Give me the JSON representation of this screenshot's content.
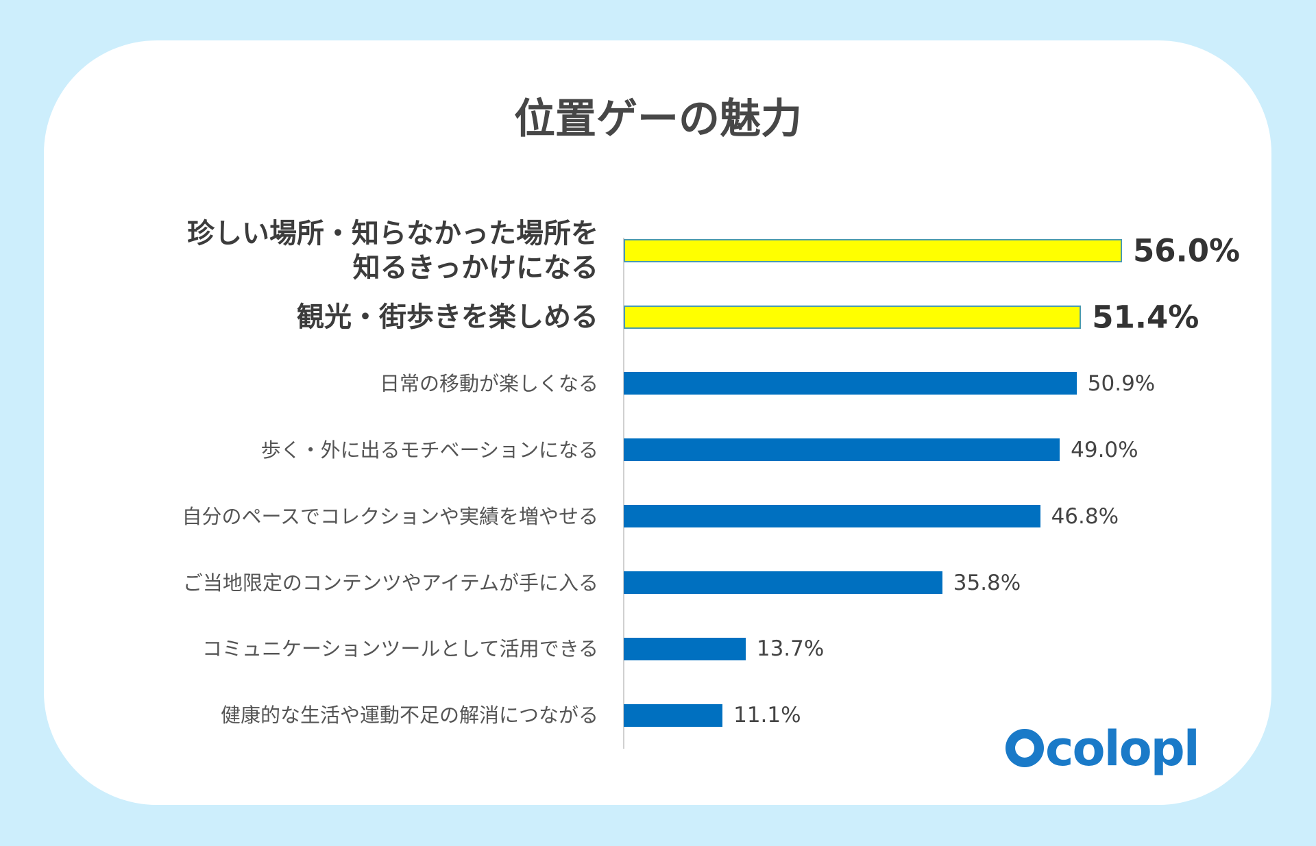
{
  "chart_data": {
    "type": "bar",
    "orientation": "horizontal",
    "title": "位置ゲーの魅力",
    "categories": [
      "珍しい場所・知らなかった場所を\n知るきっかけになる",
      "観光・街歩きを楽しめる",
      "日常の移動が楽しくなる",
      "歩く・外に出るモチベーションになる",
      "自分のペースでコレクションや実績を増やせる",
      "ご当地限定のコンテンツやアイテムが手に入る",
      "コミュニケーションツールとして活用できる",
      "健康的な生活や運動不足の解消につながる"
    ],
    "values": [
      56.0,
      51.4,
      50.9,
      49.0,
      46.8,
      35.8,
      13.7,
      11.1
    ],
    "value_labels": [
      "56.0%",
      "51.4%",
      "50.9%",
      "49.0%",
      "46.8%",
      "35.8%",
      "13.7%",
      "11.1%"
    ],
    "colors": [
      "#ffff00",
      "#ffff00",
      "#0070c0",
      "#0070c0",
      "#0070c0",
      "#0070c0",
      "#0070c0",
      "#0070c0"
    ],
    "logo": "colopl"
  }
}
